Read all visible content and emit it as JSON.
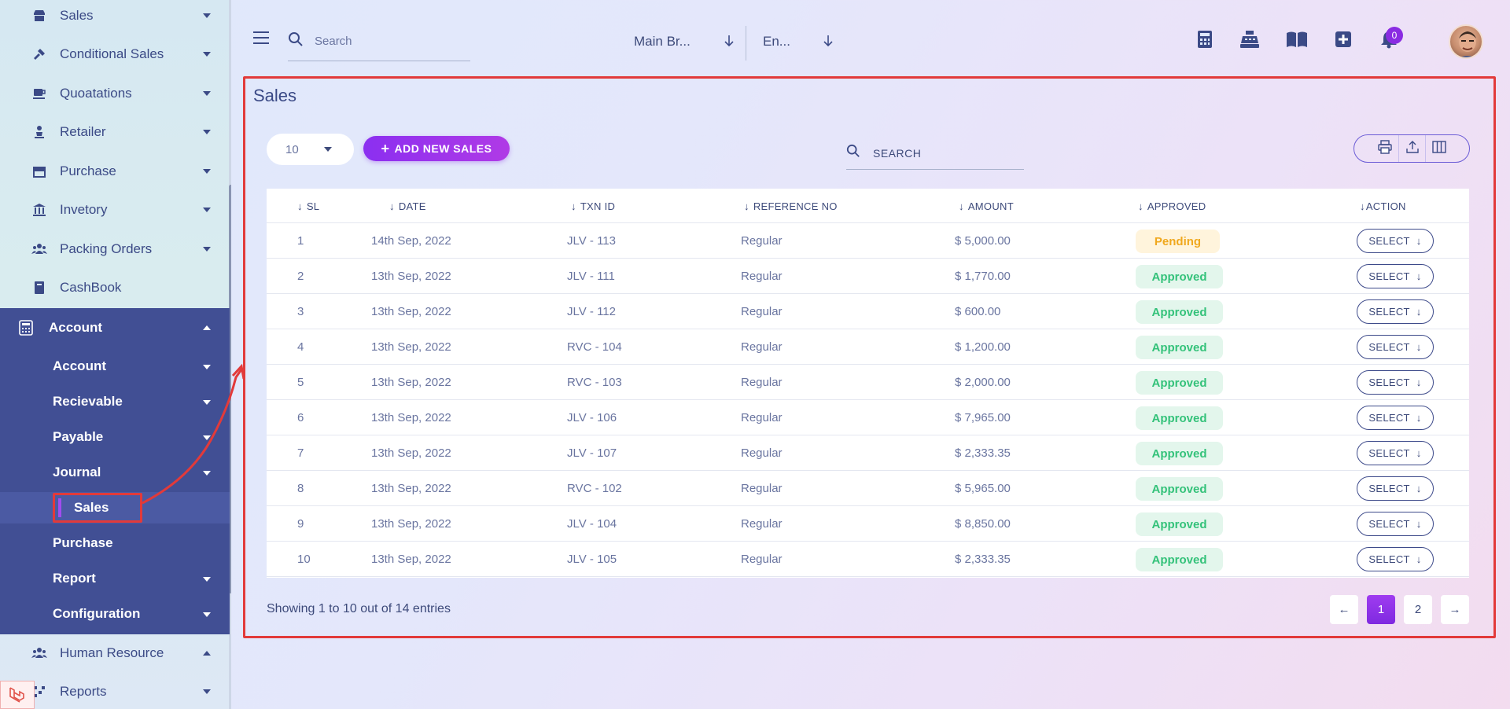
{
  "sidebar": {
    "items_top": [
      {
        "label": "Sales",
        "icon": "store-icon"
      },
      {
        "label": "Conditional Sales",
        "icon": "hammer-icon"
      },
      {
        "label": "Quoatations",
        "icon": "coffee-icon"
      },
      {
        "label": "Retailer",
        "icon": "person-icon"
      },
      {
        "label": "Purchase",
        "icon": "shop-icon"
      },
      {
        "label": "Invetory",
        "icon": "bank-icon"
      },
      {
        "label": "Packing Orders",
        "icon": "users-icon"
      },
      {
        "label": "CashBook",
        "icon": "book-icon"
      }
    ],
    "account_label": "Account",
    "sub_items": [
      {
        "label": "Account"
      },
      {
        "label": "Recievable"
      },
      {
        "label": "Payable"
      },
      {
        "label": "Journal"
      }
    ],
    "active_sub": "Sales",
    "sub_items_bottom": [
      {
        "label": "Purchase"
      },
      {
        "label": "Report"
      },
      {
        "label": "Configuration"
      }
    ],
    "items_bottom": [
      {
        "label": "Human Resource",
        "icon": "users-icon"
      },
      {
        "label": "Reports",
        "icon": "chart-icon"
      }
    ]
  },
  "topbar": {
    "search_placeholder": "Search",
    "branch": "Main Br...",
    "language": "En...",
    "notification_count": "0"
  },
  "page": {
    "title": "Sales",
    "page_length": "10",
    "add_button": "ADD NEW SALES",
    "search_placeholder": "SEARCH"
  },
  "table": {
    "headers": [
      "SL",
      "DATE",
      "TXN ID",
      "REFERENCE NO",
      "AMOUNT",
      "APPROVED",
      "ACTION"
    ],
    "rows": [
      {
        "sl": "1",
        "date": "14th Sep, 2022",
        "txn": "JLV - 113",
        "ref": "Regular",
        "amount": "$ 5,000.00",
        "status": "Pending",
        "action": "SELECT"
      },
      {
        "sl": "2",
        "date": "13th Sep, 2022",
        "txn": "JLV - 111",
        "ref": "Regular",
        "amount": "$ 1,770.00",
        "status": "Approved",
        "action": "SELECT"
      },
      {
        "sl": "3",
        "date": "13th Sep, 2022",
        "txn": "JLV - 112",
        "ref": "Regular",
        "amount": "$ 600.00",
        "status": "Approved",
        "action": "SELECT"
      },
      {
        "sl": "4",
        "date": "13th Sep, 2022",
        "txn": "RVC - 104",
        "ref": "Regular",
        "amount": "$ 1,200.00",
        "status": "Approved",
        "action": "SELECT"
      },
      {
        "sl": "5",
        "date": "13th Sep, 2022",
        "txn": "RVC - 103",
        "ref": "Regular",
        "amount": "$ 2,000.00",
        "status": "Approved",
        "action": "SELECT"
      },
      {
        "sl": "6",
        "date": "13th Sep, 2022",
        "txn": "JLV - 106",
        "ref": "Regular",
        "amount": "$ 7,965.00",
        "status": "Approved",
        "action": "SELECT"
      },
      {
        "sl": "7",
        "date": "13th Sep, 2022",
        "txn": "JLV - 107",
        "ref": "Regular",
        "amount": "$ 2,333.35",
        "status": "Approved",
        "action": "SELECT"
      },
      {
        "sl": "8",
        "date": "13th Sep, 2022",
        "txn": "RVC - 102",
        "ref": "Regular",
        "amount": "$ 5,965.00",
        "status": "Approved",
        "action": "SELECT"
      },
      {
        "sl": "9",
        "date": "13th Sep, 2022",
        "txn": "JLV - 104",
        "ref": "Regular",
        "amount": "$ 8,850.00",
        "status": "Approved",
        "action": "SELECT"
      },
      {
        "sl": "10",
        "date": "13th Sep, 2022",
        "txn": "JLV - 105",
        "ref": "Regular",
        "amount": "$ 2,333.35",
        "status": "Approved",
        "action": "SELECT"
      }
    ]
  },
  "footer": {
    "showing": "Showing 1 to 10 out of 14 entries",
    "pages": [
      "1",
      "2"
    ],
    "prev": "←",
    "next": "→"
  },
  "colors": {
    "accent": "#8b2ff0",
    "sidebar_active": "#414f94",
    "approved": "#34c27a",
    "pending": "#f0a81e",
    "highlight_border": "#e23a3a"
  }
}
